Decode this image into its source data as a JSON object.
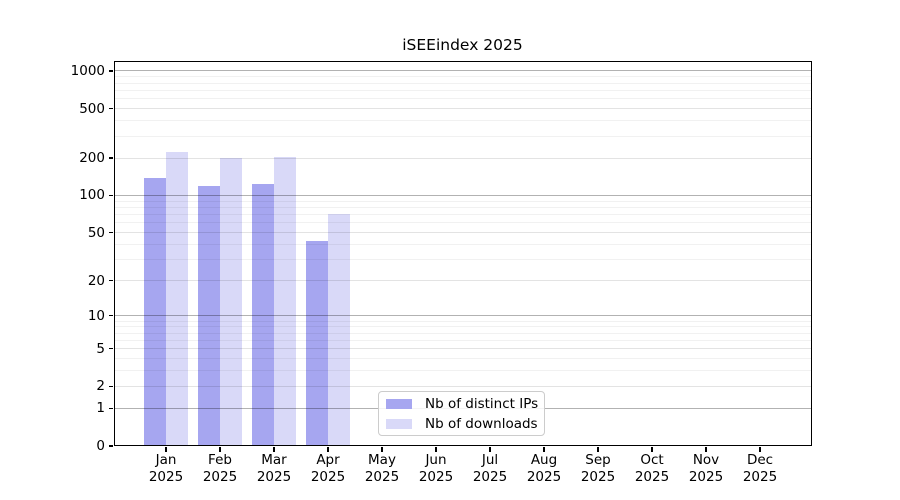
{
  "chart_data": {
    "type": "bar",
    "title": "iSEEindex 2025",
    "categories": [
      "Jan",
      "Feb",
      "Mar",
      "Apr",
      "May",
      "Jun",
      "Jul",
      "Aug",
      "Sep",
      "Oct",
      "Nov",
      "Dec"
    ],
    "category_year": "2025",
    "series": [
      {
        "name": "Nb of distinct IPs",
        "color": "#a6a6f0",
        "values": [
          138,
          120,
          124,
          43,
          null,
          null,
          null,
          null,
          null,
          null,
          null,
          null
        ]
      },
      {
        "name": "Nb of downloads",
        "color": "#d9d9f8",
        "values": [
          222,
          200,
          206,
          71,
          null,
          null,
          null,
          null,
          null,
          null,
          null,
          null
        ]
      }
    ],
    "y_axis": {
      "scale": "log10(1+x)",
      "tick_values": [
        0,
        1,
        2,
        5,
        10,
        20,
        50,
        100,
        200,
        500,
        1000
      ],
      "tick_labels": [
        "0",
        "1",
        "2",
        "5",
        "10",
        "20",
        "50",
        "100",
        "200",
        "500",
        "1000"
      ],
      "major_grid_values": [
        1,
        10,
        100,
        1000
      ],
      "labeled_grid_values": [
        2,
        5,
        20,
        50,
        200,
        500
      ],
      "minor_grid_values": [
        3,
        4,
        6,
        7,
        8,
        9,
        30,
        40,
        60,
        70,
        80,
        90,
        300,
        400,
        600,
        700,
        800,
        900
      ],
      "range": [
        0,
        1210
      ]
    },
    "x_axis": {
      "label_line2": "2025"
    },
    "legend": {
      "location": "inside-bottom-center-left"
    },
    "grid": true,
    "colors": {
      "bar_distinct_ips": "#a6a6f0",
      "bar_downloads": "#d9d9f8",
      "spine": "#000000",
      "background": "#ffffff"
    }
  }
}
